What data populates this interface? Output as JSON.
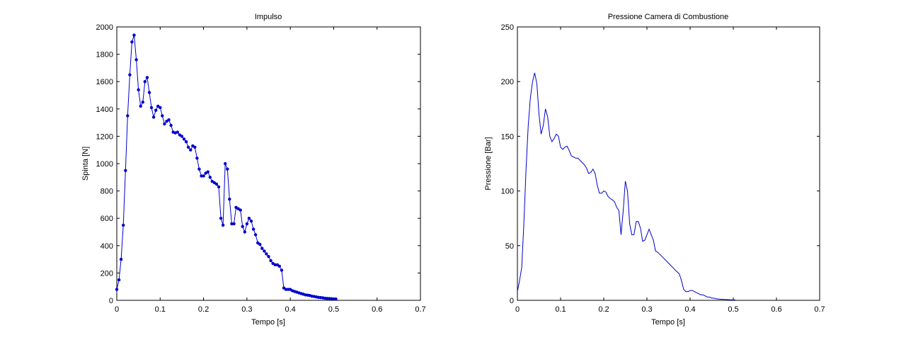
{
  "colors": {
    "series": "#0000cc",
    "axes": "#000000",
    "background": "#ffffff"
  },
  "chart_data": [
    {
      "type": "line",
      "title": "Impulso",
      "xlabel": "Tempo [s]",
      "ylabel": "Spinta [N]",
      "xlim": [
        0,
        0.7
      ],
      "ylim": [
        0,
        2000
      ],
      "xticks": [
        0,
        0.1,
        0.2,
        0.3,
        0.4,
        0.5,
        0.6,
        0.7
      ],
      "xtick_labels": [
        "0",
        "0.1",
        "0.2",
        "0.3",
        "0.4",
        "0.5",
        "0.6",
        "0.7"
      ],
      "yticks": [
        0,
        200,
        400,
        600,
        800,
        1000,
        1200,
        1400,
        1600,
        1800,
        2000
      ],
      "ytick_labels": [
        "0",
        "200",
        "400",
        "600",
        "800",
        "1000",
        "1200",
        "1400",
        "1600",
        "1800",
        "2000"
      ],
      "grid": false,
      "markers": true,
      "series": [
        {
          "x": [
            0,
            0.005,
            0.01,
            0.015,
            0.02,
            0.025,
            0.03,
            0.035,
            0.04,
            0.045,
            0.05,
            0.055,
            0.06,
            0.065,
            0.07,
            0.075,
            0.08,
            0.085,
            0.09,
            0.095,
            0.1,
            0.105,
            0.11,
            0.115,
            0.12,
            0.125,
            0.13,
            0.135,
            0.14,
            0.145,
            0.15,
            0.155,
            0.16,
            0.165,
            0.17,
            0.175,
            0.18,
            0.185,
            0.19,
            0.195,
            0.2,
            0.205,
            0.21,
            0.215,
            0.22,
            0.225,
            0.23,
            0.235,
            0.24,
            0.245,
            0.25,
            0.255,
            0.26,
            0.265,
            0.27,
            0.275,
            0.28,
            0.285,
            0.29,
            0.295,
            0.3,
            0.305,
            0.31,
            0.315,
            0.32,
            0.325,
            0.33,
            0.335,
            0.34,
            0.345,
            0.35,
            0.355,
            0.36,
            0.365,
            0.37,
            0.375,
            0.38,
            0.385,
            0.39,
            0.395,
            0.4,
            0.405,
            0.41,
            0.415,
            0.42,
            0.425,
            0.43,
            0.435,
            0.44,
            0.445,
            0.45,
            0.455,
            0.46,
            0.465,
            0.47,
            0.475,
            0.48,
            0.485,
            0.49,
            0.495,
            0.5,
            0.505
          ],
          "y": [
            80,
            150,
            300,
            550,
            950,
            1350,
            1650,
            1890,
            1940,
            1760,
            1540,
            1420,
            1450,
            1600,
            1630,
            1520,
            1410,
            1340,
            1390,
            1420,
            1410,
            1350,
            1290,
            1310,
            1320,
            1280,
            1230,
            1225,
            1230,
            1210,
            1200,
            1180,
            1160,
            1120,
            1100,
            1130,
            1120,
            1040,
            960,
            910,
            910,
            930,
            940,
            900,
            870,
            860,
            850,
            830,
            600,
            550,
            1000,
            960,
            740,
            560,
            560,
            680,
            670,
            660,
            540,
            500,
            560,
            600,
            580,
            520,
            480,
            420,
            410,
            380,
            360,
            340,
            320,
            290,
            270,
            260,
            260,
            250,
            220,
            90,
            80,
            80,
            80,
            70,
            65,
            60,
            55,
            50,
            45,
            40,
            38,
            35,
            30,
            28,
            25,
            22,
            20,
            18,
            15,
            14,
            13,
            12,
            10,
            10
          ]
        }
      ]
    },
    {
      "type": "line",
      "title": "Pressione Camera di Combustione",
      "xlabel": "Tempo [s]",
      "ylabel": "Pressione [Bar]",
      "xlim": [
        0,
        0.7
      ],
      "ylim": [
        0,
        250
      ],
      "xticks": [
        0,
        0.1,
        0.2,
        0.3,
        0.4,
        0.5,
        0.6,
        0.7
      ],
      "xtick_labels": [
        "0",
        "0.1",
        "0.2",
        "0.3",
        "0.4",
        "0.5",
        "0.6",
        "0.7"
      ],
      "yticks": [
        0,
        50,
        100,
        150,
        200,
        250
      ],
      "ytick_labels": [
        "0",
        "50",
        "100",
        "150",
        "200",
        "250"
      ],
      "grid": false,
      "markers": false,
      "series": [
        {
          "x": [
            0,
            0.005,
            0.01,
            0.015,
            0.02,
            0.025,
            0.03,
            0.035,
            0.04,
            0.045,
            0.05,
            0.055,
            0.06,
            0.065,
            0.07,
            0.075,
            0.08,
            0.085,
            0.09,
            0.095,
            0.1,
            0.105,
            0.11,
            0.115,
            0.12,
            0.125,
            0.13,
            0.135,
            0.14,
            0.145,
            0.15,
            0.155,
            0.16,
            0.165,
            0.17,
            0.175,
            0.18,
            0.185,
            0.19,
            0.195,
            0.2,
            0.205,
            0.21,
            0.215,
            0.22,
            0.225,
            0.23,
            0.235,
            0.24,
            0.245,
            0.25,
            0.255,
            0.26,
            0.265,
            0.27,
            0.275,
            0.28,
            0.285,
            0.29,
            0.295,
            0.3,
            0.305,
            0.31,
            0.315,
            0.32,
            0.325,
            0.33,
            0.335,
            0.34,
            0.345,
            0.35,
            0.355,
            0.36,
            0.365,
            0.37,
            0.375,
            0.38,
            0.385,
            0.39,
            0.395,
            0.4,
            0.405,
            0.41,
            0.415,
            0.42,
            0.425,
            0.43,
            0.435,
            0.44,
            0.445,
            0.45,
            0.455,
            0.46,
            0.465,
            0.47,
            0.475,
            0.48,
            0.485,
            0.49,
            0.495,
            0.5,
            0.505
          ],
          "y": [
            8,
            18,
            30,
            70,
            120,
            160,
            185,
            200,
            208,
            198,
            170,
            152,
            160,
            175,
            168,
            150,
            145,
            148,
            152,
            150,
            140,
            138,
            140,
            141,
            137,
            132,
            131,
            130,
            130,
            128,
            126,
            124,
            121,
            116,
            117,
            120,
            116,
            105,
            98,
            98,
            100,
            99,
            95,
            93,
            92,
            90,
            85,
            82,
            60,
            82,
            109,
            100,
            70,
            60,
            60,
            72,
            72,
            66,
            54,
            55,
            60,
            65,
            60,
            55,
            45,
            44,
            42,
            40,
            38,
            36,
            34,
            32,
            30,
            28,
            26,
            24,
            18,
            10,
            8,
            8,
            9,
            9,
            8,
            7,
            6,
            5,
            5,
            4,
            3,
            3,
            2,
            2,
            1.5,
            1.2,
            1,
            1,
            0.8,
            0.7,
            0.6,
            0.5,
            0.4,
            0.4
          ]
        }
      ]
    }
  ]
}
